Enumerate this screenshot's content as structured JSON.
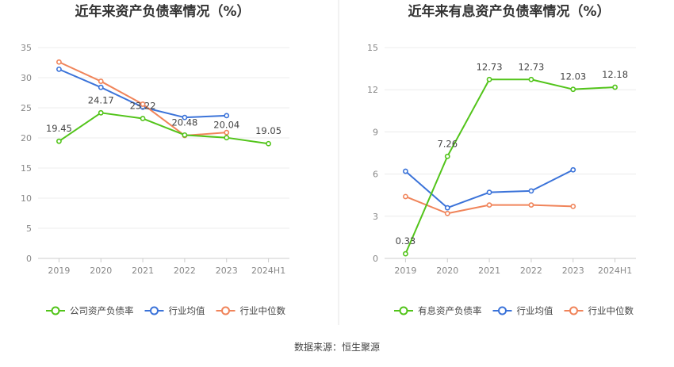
{
  "source": "数据来源：恒生聚源",
  "colors": {
    "company": "#52c41a",
    "avg": "#3b73d9",
    "median": "#f0845a"
  },
  "chart_data": [
    {
      "type": "line",
      "title": "近年来资产负债率情况（%）",
      "categories": [
        "2019",
        "2020",
        "2021",
        "2022",
        "2023",
        "2024H1"
      ],
      "ylim": [
        0,
        35
      ],
      "yticks": [
        0,
        5,
        10,
        15,
        20,
        25,
        30,
        35
      ],
      "grid": true,
      "legend_position": "bottom",
      "series": [
        {
          "name": "公司资产负债率",
          "key": "company",
          "values": [
            19.45,
            24.17,
            23.22,
            20.48,
            20.04,
            19.05
          ],
          "labels": [
            "19.45",
            "24.17",
            "23.22",
            "20.48",
            "20.04",
            "19.05"
          ]
        },
        {
          "name": "行业均值",
          "key": "avg",
          "values": [
            31.4,
            28.4,
            25.1,
            23.4,
            23.7,
            null
          ]
        },
        {
          "name": "行业中位数",
          "key": "median",
          "values": [
            32.6,
            29.4,
            25.6,
            20.4,
            20.9,
            null
          ]
        }
      ]
    },
    {
      "type": "line",
      "title": "近年来有息资产负债率情况（%）",
      "categories": [
        "2019",
        "2020",
        "2021",
        "2022",
        "2023",
        "2024H1"
      ],
      "ylim": [
        0,
        15
      ],
      "yticks": [
        0,
        3,
        6,
        9,
        12,
        15
      ],
      "grid": true,
      "legend_position": "bottom",
      "series": [
        {
          "name": "有息资产负债率",
          "key": "company",
          "values": [
            0.33,
            7.26,
            12.73,
            12.73,
            12.03,
            12.18
          ],
          "labels": [
            "0.33",
            "7.26",
            "12.73",
            "12.73",
            "12.03",
            "12.18"
          ]
        },
        {
          "name": "行业均值",
          "key": "avg",
          "values": [
            6.2,
            3.6,
            4.7,
            4.8,
            6.3,
            null
          ]
        },
        {
          "name": "行业中位数",
          "key": "median",
          "values": [
            4.4,
            3.2,
            3.8,
            3.8,
            3.7,
            null
          ]
        }
      ]
    }
  ]
}
